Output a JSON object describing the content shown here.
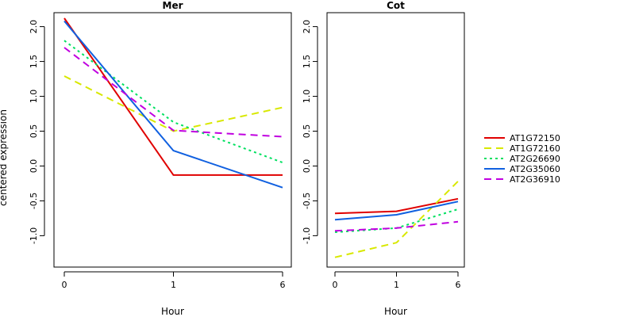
{
  "chart_data": {
    "type": "line",
    "ylabel": "centered expression",
    "legend_position": "right",
    "grid": false,
    "series_styles": [
      {
        "name": "AT1G72150",
        "color": "#e00000",
        "dash": "solid"
      },
      {
        "name": "AT1G72160",
        "color": "#d8e800",
        "dash": "dashed"
      },
      {
        "name": "AT2G26690",
        "color": "#00e060",
        "dash": "dotted"
      },
      {
        "name": "AT2G35060",
        "color": "#1060e0",
        "dash": "solid"
      },
      {
        "name": "AT2G36910",
        "color": "#c000e0",
        "dash": "dashed"
      }
    ],
    "panels": [
      {
        "title": "Mer",
        "xlabel": "Hour",
        "x": [
          "0",
          "1",
          "6"
        ],
        "ylim": [
          -1.45,
          2.2
        ],
        "yticks": [
          "-1.0",
          "-0.5",
          "0.0",
          "0.5",
          "1.0",
          "1.5",
          "2.0"
        ],
        "series": [
          {
            "name": "AT1G72150",
            "values": [
              2.12,
              -0.13,
              -0.13
            ]
          },
          {
            "name": "AT1G72160",
            "values": [
              1.29,
              0.5,
              0.84
            ]
          },
          {
            "name": "AT2G26690",
            "values": [
              1.8,
              0.63,
              0.05
            ]
          },
          {
            "name": "AT2G35060",
            "values": [
              2.08,
              0.22,
              -0.31
            ]
          },
          {
            "name": "AT2G36910",
            "values": [
              1.7,
              0.51,
              0.42
            ]
          }
        ]
      },
      {
        "title": "Cot",
        "xlabel": "Hour",
        "x": [
          "0",
          "1",
          "6"
        ],
        "ylim": [
          -1.45,
          2.2
        ],
        "yticks": [
          "-1.0",
          "-0.5",
          "0.0",
          "0.5",
          "1.0",
          "1.5",
          "2.0"
        ],
        "series": [
          {
            "name": "AT1G72150",
            "values": [
              -0.68,
              -0.65,
              -0.47
            ]
          },
          {
            "name": "AT1G72160",
            "values": [
              -1.31,
              -1.1,
              -0.22
            ]
          },
          {
            "name": "AT2G26690",
            "values": [
              -0.95,
              -0.89,
              -0.62
            ]
          },
          {
            "name": "AT2G35060",
            "values": [
              -0.77,
              -0.7,
              -0.51
            ]
          },
          {
            "name": "AT2G36910",
            "values": [
              -0.93,
              -0.89,
              -0.8
            ]
          }
        ]
      }
    ]
  }
}
